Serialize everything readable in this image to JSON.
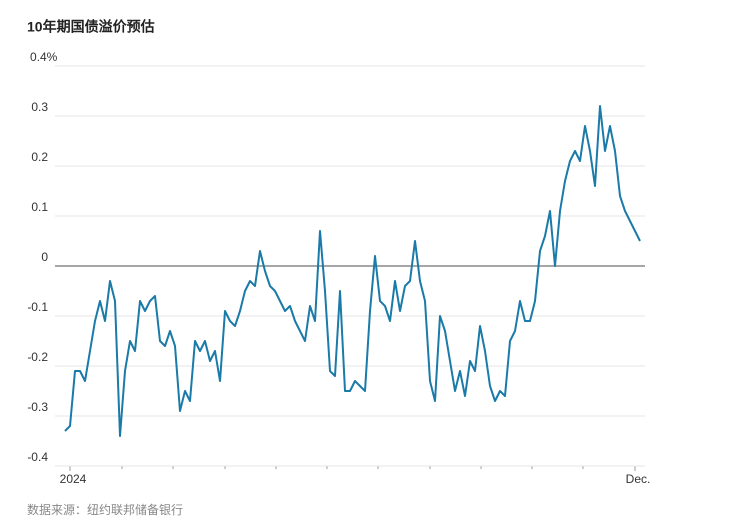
{
  "chart_data": {
    "type": "line",
    "title": "10年期国债溢价预估",
    "source": "数据来源：纽约联邦储备银行",
    "categories": [
      null,
      "2024",
      null,
      null,
      null,
      null,
      null,
      null,
      null,
      null,
      null,
      null,
      null,
      null,
      null,
      null,
      null,
      null,
      null,
      null,
      null,
      null,
      null,
      null,
      null,
      null,
      null,
      null,
      null,
      null,
      null,
      null,
      null,
      null,
      null,
      null,
      null,
      null,
      null,
      null,
      null,
      null,
      null,
      null,
      null,
      null,
      null,
      null,
      null,
      null,
      null,
      null,
      null,
      null,
      null,
      null,
      null,
      null,
      null,
      null,
      null,
      null,
      null,
      null,
      null,
      null,
      null,
      null,
      null,
      null,
      null,
      null,
      null,
      null,
      null,
      null,
      null,
      null,
      null,
      null,
      null,
      null,
      null,
      null,
      null,
      null,
      null,
      null,
      null,
      null,
      null,
      null,
      null,
      null,
      null,
      null,
      null,
      null,
      null,
      null,
      null,
      null,
      null,
      null,
      null,
      null,
      null,
      null,
      null,
      null,
      null,
      null,
      null,
      null,
      "Dec.",
      null
    ],
    "values": [
      -0.33,
      -0.32,
      -0.21,
      -0.21,
      -0.23,
      -0.17,
      -0.11,
      -0.07,
      -0.11,
      -0.03,
      -0.07,
      -0.34,
      -0.21,
      -0.15,
      -0.17,
      -0.07,
      -0.09,
      -0.07,
      -0.06,
      -0.15,
      -0.16,
      -0.13,
      -0.16,
      -0.29,
      -0.25,
      -0.27,
      -0.15,
      -0.17,
      -0.15,
      -0.19,
      -0.17,
      -0.23,
      -0.09,
      -0.11,
      -0.12,
      -0.09,
      -0.05,
      -0.03,
      -0.04,
      0.03,
      -0.01,
      -0.04,
      -0.05,
      -0.07,
      -0.09,
      -0.08,
      -0.11,
      -0.13,
      -0.15,
      -0.08,
      -0.11,
      0.07,
      -0.05,
      -0.21,
      -0.22,
      -0.05,
      -0.25,
      -0.25,
      -0.23,
      -0.24,
      -0.25,
      -0.09,
      0.02,
      -0.07,
      -0.08,
      -0.11,
      -0.03,
      -0.09,
      -0.04,
      -0.03,
      0.05,
      -0.03,
      -0.07,
      -0.23,
      -0.27,
      -0.1,
      -0.13,
      -0.19,
      -0.25,
      -0.21,
      -0.26,
      -0.19,
      -0.21,
      -0.12,
      -0.17,
      -0.24,
      -0.27,
      -0.25,
      -0.26,
      -0.15,
      -0.13,
      -0.07,
      -0.11,
      -0.11,
      -0.07,
      0.03,
      0.06,
      0.11,
      0,
      0.11,
      0.17,
      0.21,
      0.23,
      0.21,
      0.28,
      0.23,
      0.16,
      0.32,
      0.23,
      0.28,
      0.23,
      0.14,
      0.11,
      0.09,
      0.07,
      0.05
    ],
    "color": "#1a7aa8",
    "ylim": [
      -0.4,
      0.4
    ],
    "yticks": [
      {
        "value": 0.4,
        "label": "0.4%"
      },
      0.3,
      0.2,
      0.1,
      0,
      -0.1,
      -0.2,
      -0.3,
      -0.4
    ],
    "grid": true
  }
}
